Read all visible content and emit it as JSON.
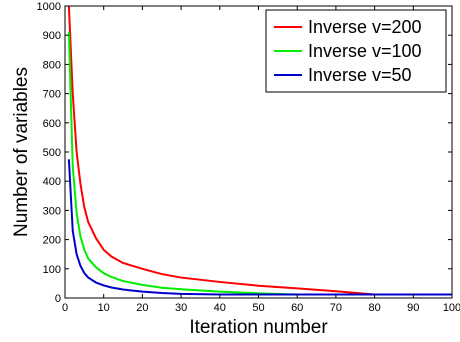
{
  "chart_data": {
    "type": "line",
    "xlabel": "Iteration number",
    "ylabel": "Number of variables",
    "xlim": [
      0,
      100
    ],
    "ylim": [
      0,
      1000
    ],
    "xticks": [
      0,
      10,
      20,
      30,
      40,
      50,
      60,
      70,
      80,
      90,
      100
    ],
    "yticks": [
      0,
      100,
      200,
      300,
      400,
      500,
      600,
      700,
      800,
      900,
      1000
    ],
    "grid": false,
    "legend_position": "top-right",
    "series": [
      {
        "name": "Inverse v=200",
        "color": "#ff0000",
        "x": [
          1,
          2,
          3,
          4,
          5,
          6,
          8,
          10,
          12,
          15,
          20,
          25,
          30,
          40,
          50,
          60,
          70,
          80,
          90,
          100
        ],
        "y": [
          1000,
          700,
          500,
          390,
          310,
          260,
          205,
          165,
          142,
          120,
          100,
          82,
          70,
          55,
          42,
          33,
          23,
          12,
          12,
          12
        ]
      },
      {
        "name": "Inverse v=100",
        "color": "#00ee00",
        "x": [
          1,
          2,
          3,
          4,
          5,
          6,
          8,
          10,
          12,
          15,
          20,
          25,
          30,
          40,
          50,
          60,
          70,
          80,
          90,
          100
        ],
        "y": [
          910,
          450,
          290,
          210,
          165,
          135,
          105,
          85,
          72,
          58,
          45,
          35,
          30,
          22,
          16,
          12,
          12,
          12,
          12,
          12
        ]
      },
      {
        "name": "Inverse v=50",
        "color": "#0000cc",
        "x": [
          1,
          2,
          3,
          4,
          5,
          6,
          8,
          10,
          12,
          15,
          20,
          25,
          30,
          40,
          50,
          60,
          70,
          80,
          90,
          100
        ],
        "y": [
          475,
          230,
          150,
          110,
          85,
          70,
          53,
          43,
          36,
          29,
          22,
          17,
          14,
          12,
          12,
          12,
          12,
          12,
          12,
          12
        ]
      }
    ]
  }
}
